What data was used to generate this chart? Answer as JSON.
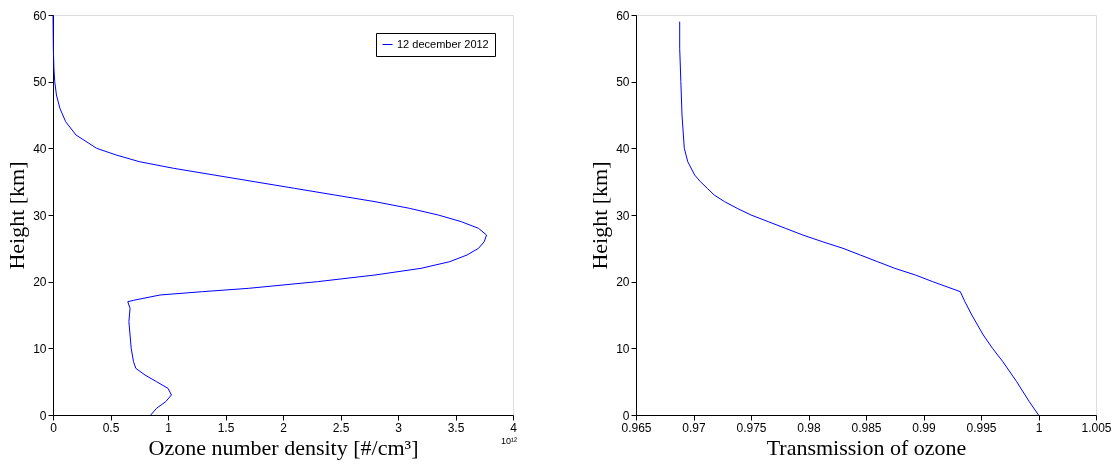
{
  "chart_data": [
    {
      "type": "line",
      "xlabel": "Ozone number density [#/cm³]",
      "ylabel": "Height [km]",
      "xlim": [
        0,
        4
      ],
      "xticks": [
        0,
        0.5,
        1,
        1.5,
        2,
        2.5,
        3,
        3.5,
        4
      ],
      "ylim": [
        0,
        60
      ],
      "yticks": [
        0,
        10,
        20,
        30,
        40,
        50,
        60
      ],
      "grid": false,
      "legend": "top right",
      "marker": "none",
      "line_style": "solid",
      "annotations": [
        "10¹²"
      ],
      "series": [
        {
          "name": "12 december 2012",
          "color": "#0000ff",
          "x": [
            0.85,
            0.9,
            0.98,
            1.03,
            1.0,
            0.9,
            0.8,
            0.72,
            0.7,
            0.68,
            0.67,
            0.66,
            0.67,
            0.65,
            0.7,
            0.93,
            1.3,
            1.7,
            2.3,
            2.8,
            3.2,
            3.45,
            3.6,
            3.7,
            3.75,
            3.77,
            3.7,
            3.55,
            3.35,
            3.1,
            2.8,
            2.45,
            2.1,
            1.75,
            1.4,
            1.05,
            0.75,
            0.55,
            0.38,
            0.2,
            0.11,
            0.06,
            0.03,
            0.015,
            0.008,
            0.003,
            0.001,
            0
          ],
          "values": [
            0,
            1,
            2,
            3,
            4,
            5,
            6,
            7,
            8,
            10,
            12,
            14,
            16,
            17,
            17.2,
            18,
            18.5,
            19,
            20,
            21,
            22,
            23,
            24,
            25,
            26,
            27,
            28,
            29,
            30,
            31,
            32,
            33,
            34,
            35,
            36,
            37,
            38,
            39,
            40,
            42,
            44,
            46,
            48,
            50,
            52,
            55,
            58,
            60
          ]
        }
      ]
    },
    {
      "type": "line",
      "xlabel": "Transmission of ozone",
      "ylabel": "Height [km]",
      "xlim": [
        0.965,
        1.005
      ],
      "xticks": [
        0.965,
        0.97,
        0.975,
        0.98,
        0.985,
        0.99,
        0.995,
        1,
        1.005
      ],
      "ylim": [
        0,
        60
      ],
      "yticks": [
        0,
        10,
        20,
        30,
        40,
        50,
        60
      ],
      "grid": false,
      "legend": false,
      "marker": "none",
      "line_style": "solid",
      "series": [
        {
          "color": "#0000ff",
          "x": [
            1.0,
            0.9992,
            0.9981,
            0.9969,
            0.996,
            0.9952,
            0.9942,
            0.9936,
            0.9932,
            0.9908,
            0.9893,
            0.9875,
            0.986,
            0.9845,
            0.983,
            0.9812,
            0.9795,
            0.978,
            0.9765,
            0.975,
            0.9738,
            0.9727,
            0.9718,
            0.9712,
            0.9706,
            0.9701,
            0.9695,
            0.9692,
            0.969,
            0.9689,
            0.9688,
            0.9688
          ],
          "values": [
            0,
            2,
            5,
            8,
            10,
            12,
            15,
            17,
            18.5,
            20,
            21,
            22,
            23,
            24,
            25,
            26,
            27,
            28,
            29,
            30,
            31,
            32,
            33,
            34,
            35,
            36,
            38,
            40,
            45,
            50,
            55,
            59
          ]
        }
      ]
    }
  ]
}
